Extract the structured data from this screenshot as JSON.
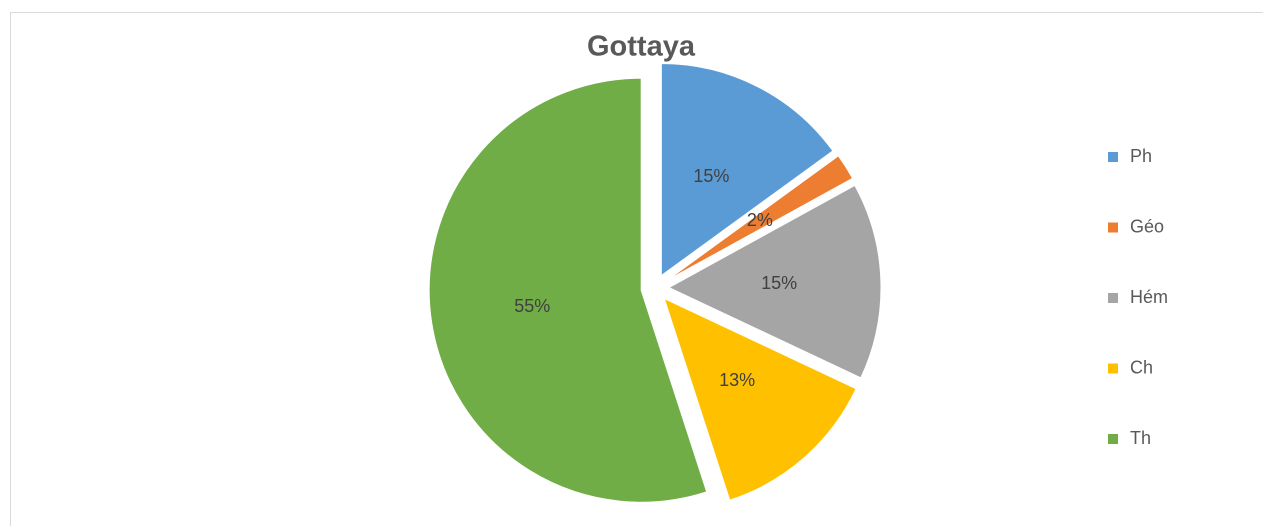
{
  "chart_data": {
    "type": "pie",
    "title": "Gottaya",
    "categories": [
      "Ph",
      "Géo",
      "Hém",
      "Ch",
      "Th"
    ],
    "values": [
      15,
      2,
      15,
      13,
      55
    ],
    "value_labels": [
      "15%",
      "2%",
      "15%",
      "13%",
      "55%"
    ],
    "colors": [
      "#5b9bd5",
      "#ed7d31",
      "#a5a5a5",
      "#ffc000",
      "#70ad47"
    ],
    "legend": "right"
  }
}
